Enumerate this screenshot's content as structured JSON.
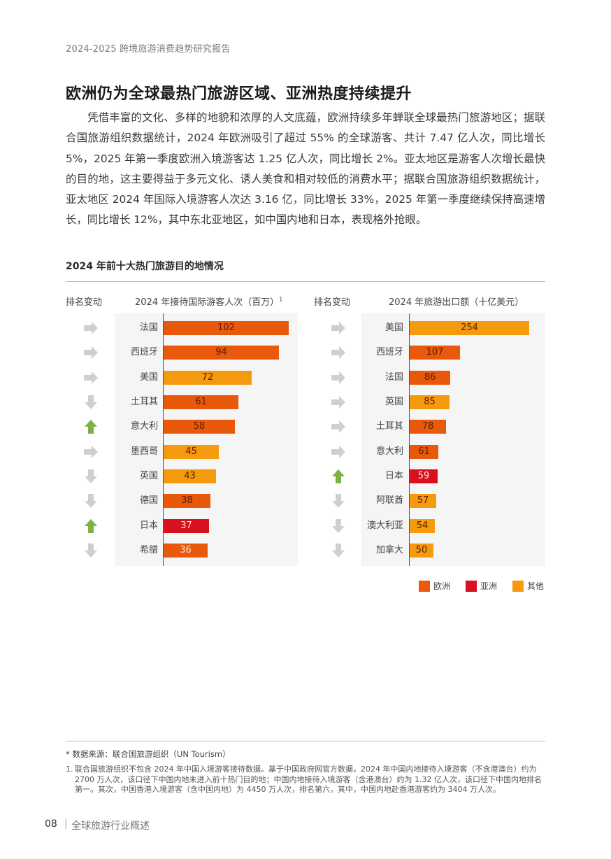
{
  "header": {
    "running_title": "2024-2025 跨境旅游消费趋势研究报告"
  },
  "section": {
    "title": "欧洲仍为全球最热门旅游区域、亚洲热度持续提升",
    "paragraph": "凭借丰富的文化、多样的地貌和浓厚的人文底蕴，欧洲持续多年蝉联全球最热门旅游地区；据联合国旅游组织数据统计，2024 年欧洲吸引了超过 55% 的全球游客、共计 7.47 亿人次，同比增长 5%，2025 年第一季度欧洲入境游客达 1.25 亿人次，同比增长 2%。亚太地区是游客人次增长最快的目的地，这主要得益于多元文化、诱人美食和相对较低的消费水平；据联合国旅游组织数据统计，亚太地区 2024 年国际入境游客人次达 3.16 亿，同比增长 33%，2025 年第一季度继续保持高速增长，同比增长 12%，其中东北亚地区，如中国内地和日本，表现格外抢眼。"
  },
  "figure": {
    "title": "2024 年前十大热门旅游目的地情况",
    "rank_change_header": "排名变动",
    "left_header": "2024 年接待国际游客人次（百万）",
    "left_header_footnote_mark": "1",
    "right_header": "2024 年旅游出口额（十亿美元）",
    "legend": [
      {
        "label": "欧洲",
        "color": "#e8590c"
      },
      {
        "label": "亚洲",
        "color": "#d9101e"
      },
      {
        "label": "其他",
        "color": "#f59a0c"
      }
    ],
    "colors": {
      "europe": "#e8590c",
      "asia": "#d9101e",
      "other": "#f59a0c",
      "arrow_same": "#cfcfcf",
      "arrow_down": "#cfcfcf",
      "arrow_up": "#7cb342",
      "panel_bg": "#f5f5f5"
    }
  },
  "chart_data": [
    {
      "type": "bar",
      "orientation": "horizontal",
      "title": "2024 年接待国际游客人次（百万）",
      "categories": [
        "法国",
        "西班牙",
        "美国",
        "土耳其",
        "意大利",
        "墨西哥",
        "英国",
        "德国",
        "日本",
        "希腊"
      ],
      "values": [
        102,
        94,
        72,
        61,
        58,
        45,
        43,
        38,
        37,
        36
      ],
      "region": [
        "欧洲",
        "欧洲",
        "其他",
        "欧洲",
        "欧洲",
        "其他",
        "其他",
        "欧洲",
        "亚洲",
        "欧洲"
      ],
      "rank_change": [
        "same",
        "same",
        "same",
        "down",
        "up",
        "same",
        "down",
        "down",
        "up",
        "down"
      ],
      "xlabel": "",
      "ylabel": "",
      "xlim": [
        0,
        110
      ],
      "grid": false,
      "legend_position": "bottom-right"
    },
    {
      "type": "bar",
      "orientation": "horizontal",
      "title": "2024 年旅游出口额（十亿美元）",
      "categories": [
        "美国",
        "西班牙",
        "法国",
        "英国",
        "土耳其",
        "意大利",
        "日本",
        "阿联酋",
        "澳大利亚",
        "加拿大"
      ],
      "values": [
        254,
        107,
        86,
        85,
        78,
        61,
        59,
        57,
        54,
        50
      ],
      "region": [
        "其他",
        "欧洲",
        "欧洲",
        "其他",
        "欧洲",
        "欧洲",
        "亚洲",
        "其他",
        "其他",
        "其他"
      ],
      "rank_change": [
        "same",
        "same",
        "same",
        "same",
        "same",
        "same",
        "up",
        "down",
        "down",
        "down"
      ],
      "xlabel": "",
      "ylabel": "",
      "xlim": [
        0,
        280
      ],
      "grid": false,
      "legend_position": "bottom-right"
    }
  ],
  "notes": {
    "source": "* 数据来源：联合国旅游组织（UN Tourism）",
    "footnote_number": "1.",
    "footnote_text": "联合国旅游组织不包含 2024 年中国入境游客接待数据。基于中国政府网官方数据，2024 年中国内地接待入境游客（不含港澳台）约为 2700 万人次，该口径下中国内地未进入前十热门目的地；中国内地接待入境游客（含港澳台）约为 1.32 亿人次，该口径下中国内地排名第一。其次，中国香港入境游客（含中国内地）为 4450 万人次，排名第六，其中，中国内地赴香港游客约为 3404 万人次。"
  },
  "footer": {
    "page_number": "08",
    "separator": "|",
    "section_name": "全球旅游行业概述"
  }
}
